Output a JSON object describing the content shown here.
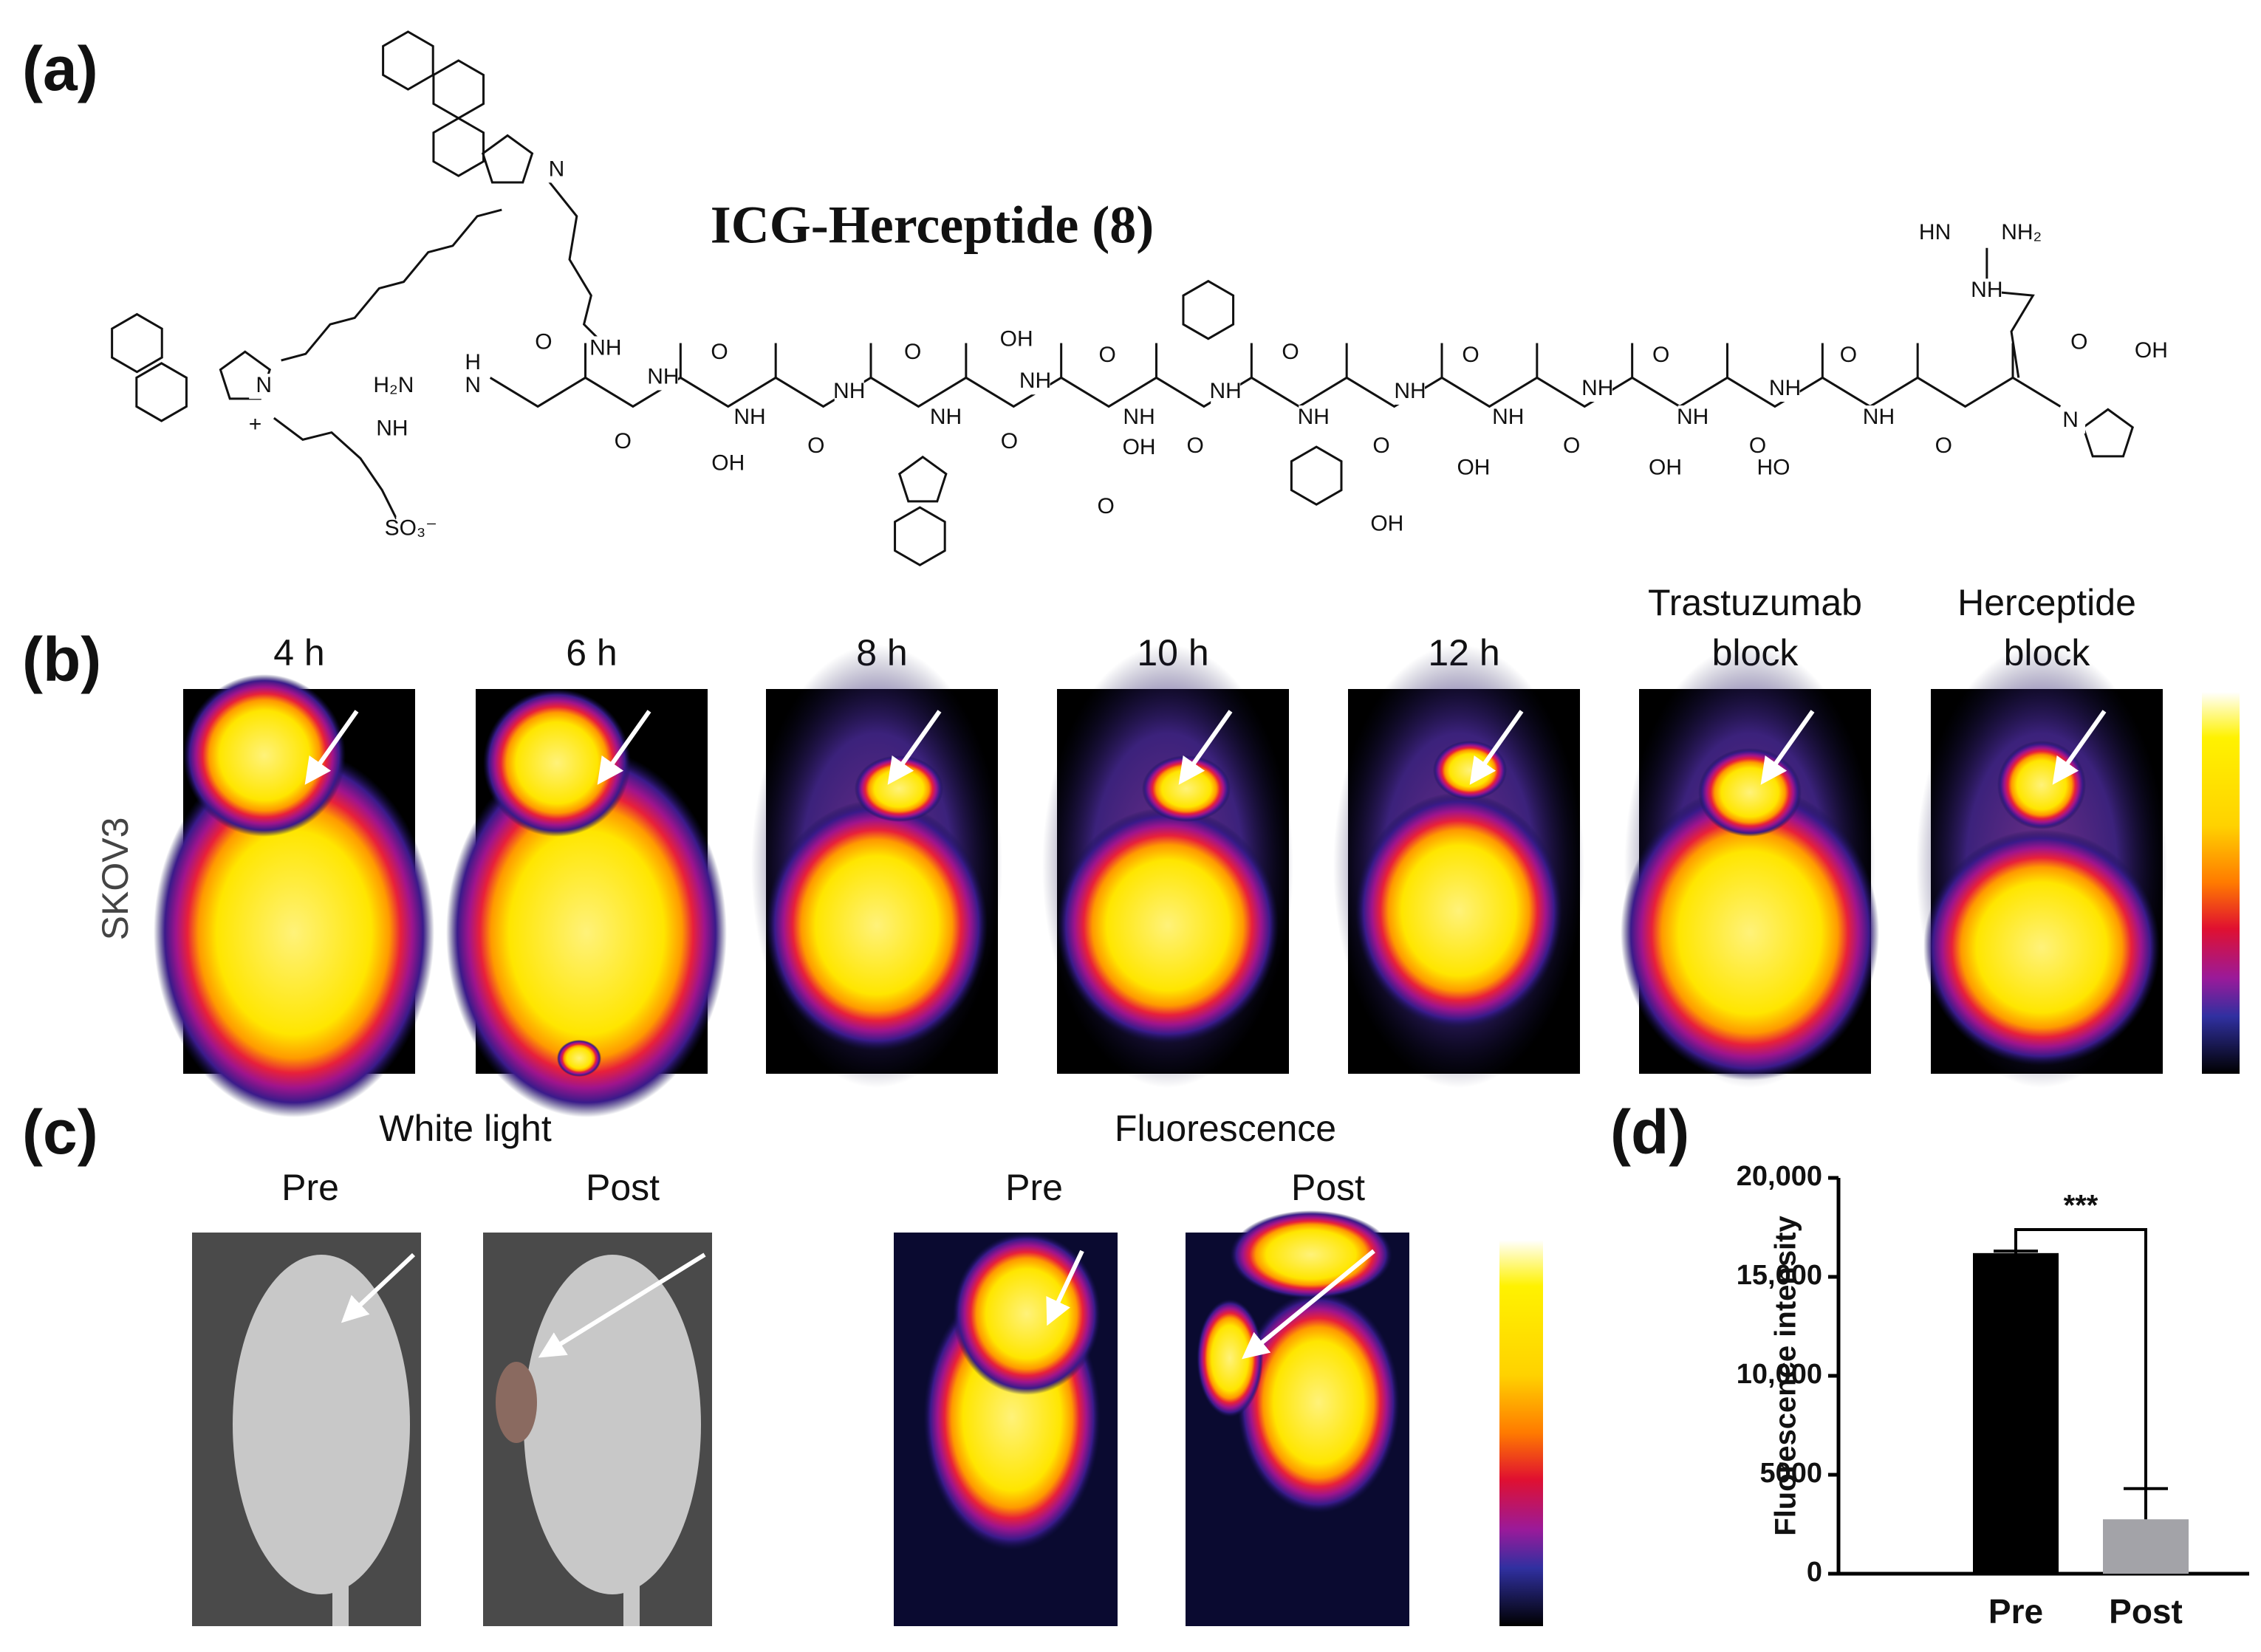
{
  "panel_a": {
    "label": "(a)",
    "title": "ICG-Herceptide (8)",
    "atom_labels": [
      "N",
      "N",
      "+",
      "SO₃⁻",
      "O",
      "NH",
      "H₂N",
      "H",
      "N",
      "NH",
      "O",
      "NH",
      "OH",
      "O",
      "NH",
      "O",
      "NH",
      "OH",
      "O",
      "NH",
      "O",
      "OH",
      "O",
      "NH",
      "O",
      "NH",
      "O",
      "NH",
      "OH",
      "O",
      "NH",
      "OH",
      "O",
      "NH",
      "O",
      "NH",
      "OH",
      "O",
      "NH",
      "O",
      "NH",
      "HO",
      "O",
      "NH",
      "O",
      "NH",
      "O",
      "N",
      "O",
      "OH",
      "HN",
      "NH₂",
      "NH"
    ]
  },
  "panel_b": {
    "label": "(b)",
    "row_label": "SKOV3",
    "columns": [
      [
        "4 h"
      ],
      [
        "6 h"
      ],
      [
        "8 h"
      ],
      [
        "10 h"
      ],
      [
        "12 h"
      ],
      [
        "Trastuzumab",
        "block"
      ],
      [
        "Herceptide",
        "block"
      ]
    ]
  },
  "panel_c": {
    "label": "(c)",
    "white_light": {
      "title": "White light",
      "columns": [
        "Pre",
        "Post"
      ]
    },
    "fluorescence": {
      "title": "Fluorescence",
      "columns": [
        "Pre",
        "Post"
      ]
    }
  },
  "panel_d": {
    "label": "(d)"
  },
  "chart_data": {
    "type": "bar",
    "ylabel": "Fluorescence intensity",
    "categories": [
      "Pre",
      "Post"
    ],
    "values": [
      16200,
      2750
    ],
    "errors": [
      100,
      1550
    ],
    "colors": [
      "#000000",
      "#a3a3a8"
    ],
    "significance": "***",
    "ylim": [
      0,
      20000
    ],
    "yticks": [
      0,
      5000,
      {
        "value": 10000,
        "label": "10,000"
      },
      {
        "value": 15000,
        "label": "15,000"
      },
      {
        "value": 20000,
        "label": "20,000"
      }
    ]
  }
}
